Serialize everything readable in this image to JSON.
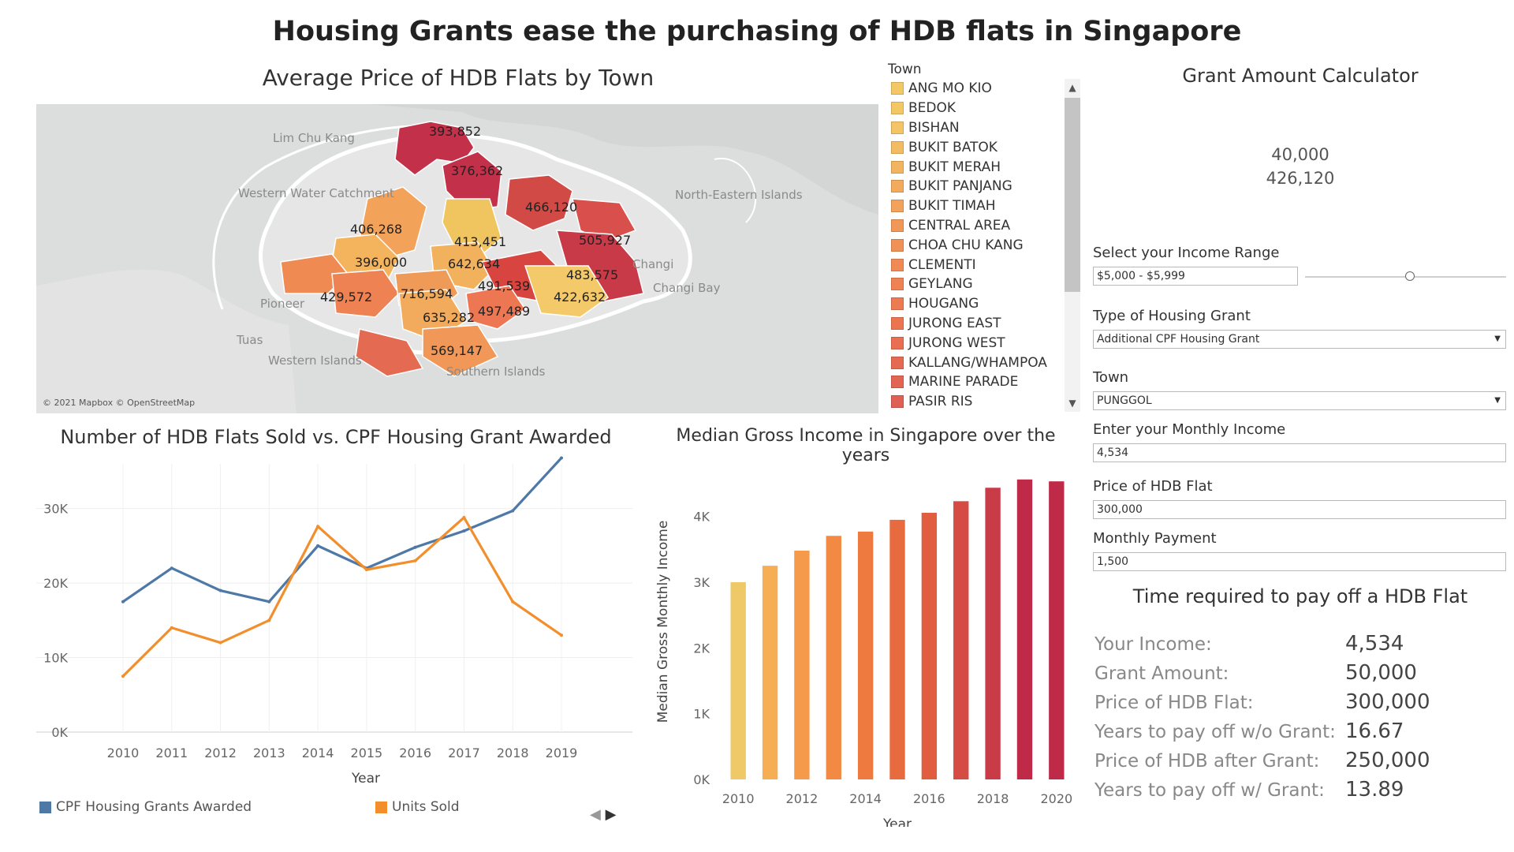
{
  "title": "Housing Grants ease the purchasing of HDB flats in Singapore",
  "map": {
    "title": "Average Price of HDB Flats by Town",
    "credit": "© 2021 Mapbox © OpenStreetMap",
    "price_labels": [
      "393,852",
      "376,362",
      "466,120",
      "406,268",
      "413,451",
      "505,927",
      "396,000",
      "642,634",
      "483,575",
      "491,539",
      "422,632",
      "429,572",
      "716,594",
      "635,282",
      "497,489",
      "569,147"
    ],
    "place_labels": [
      "Lim Chu Kang",
      "Western Water Catchment",
      "Pioneer",
      "Tuas",
      "Western Islands",
      "North-Eastern Islands",
      "Changi",
      "Changi Bay",
      "Southern Islands"
    ]
  },
  "legend": {
    "title": "Town",
    "items": [
      {
        "label": "ANG MO KIO",
        "color": "#f4c765"
      },
      {
        "label": "BEDOK",
        "color": "#f4c765"
      },
      {
        "label": "BISHAN",
        "color": "#f4c467"
      },
      {
        "label": "BUKIT BATOK",
        "color": "#f3bc62"
      },
      {
        "label": "BUKIT MERAH",
        "color": "#f3b45f"
      },
      {
        "label": "BUKIT PANJANG",
        "color": "#f2aa5c"
      },
      {
        "label": "BUKIT TIMAH",
        "color": "#f2a25a"
      },
      {
        "label": "CENTRAL AREA",
        "color": "#f19858"
      },
      {
        "label": "CHOA CHU KANG",
        "color": "#f09256"
      },
      {
        "label": "CLEMENTI",
        "color": "#ef8a55"
      },
      {
        "label": "GEYLANG",
        "color": "#ee8253"
      },
      {
        "label": "HOUGANG",
        "color": "#ec7a52"
      },
      {
        "label": "JURONG EAST",
        "color": "#eb7551"
      },
      {
        "label": "JURONG WEST",
        "color": "#e86f51"
      },
      {
        "label": "KALLANG/WHAMPOA",
        "color": "#e56a52"
      },
      {
        "label": "MARINE PARADE",
        "color": "#e26553"
      },
      {
        "label": "PASIR RIS",
        "color": "#df6054"
      }
    ]
  },
  "calculator": {
    "title": "Grant Amount Calculator",
    "value1": "40,000",
    "value2": "426,120",
    "income_range_label": "Select your Income Range",
    "income_range_value": "$5,000 - $5,999",
    "slider_fraction": 0.52,
    "grant_type_label": "Type of Housing Grant",
    "grant_type_value": "Additional CPF Housing Grant",
    "town_label": "Town",
    "town_value": "PUNGGOL",
    "income_label": "Enter your Monthly Income",
    "income_value": "4,534",
    "price_label": "Price of HDB Flat",
    "price_value": "300,000",
    "payment_label": "Monthly Payment",
    "payment_value": "1,500"
  },
  "results": {
    "title": "Time required to pay off a HDB Flat",
    "rows": [
      {
        "label": "Your Income:",
        "value": "4,534"
      },
      {
        "label": "Grant Amount:",
        "value": "50,000"
      },
      {
        "label": "Price of HDB Flat:",
        "value": "300,000"
      },
      {
        "label": "Years to pay off w/o Grant:",
        "value": "16.67"
      },
      {
        "label": "Price of HDB after Grant:",
        "value": "250,000"
      },
      {
        "label": "Years to pay off w/ Grant:",
        "value": "13.89"
      }
    ]
  },
  "chart_data": [
    {
      "type": "line",
      "title": "Number of HDB Flats Sold vs. CPF Housing Grant Awarded",
      "xlabel": "Year",
      "ylabel": "",
      "x": [
        2010,
        2011,
        2012,
        2013,
        2014,
        2015,
        2016,
        2017,
        2018,
        2019
      ],
      "ylim": [
        0,
        36000
      ],
      "yticks": [
        0,
        10000,
        20000,
        30000
      ],
      "ytick_labels": [
        "0K",
        "10K",
        "20K",
        "30K"
      ],
      "grid": true,
      "legend_position": "bottom",
      "series": [
        {
          "name": "CPF Housing Grants Awarded",
          "color": "#4e79a7",
          "values": [
            17500,
            22000,
            19000,
            17500,
            25000,
            22000,
            24800,
            27000,
            29700,
            36800
          ]
        },
        {
          "name": "Units Sold",
          "color": "#f28e2b",
          "values": [
            7500,
            14000,
            12000,
            15000,
            27600,
            21800,
            23000,
            28800,
            17500,
            13000
          ]
        }
      ]
    },
    {
      "type": "bar",
      "title": "Median Gross Income in Singapore over the years",
      "xlabel": "Year",
      "ylabel": "Median Gross Monthly Income",
      "categories": [
        "2010",
        "2011",
        "2012",
        "2013",
        "2014",
        "2015",
        "2016",
        "2017",
        "2018",
        "2019",
        "2020"
      ],
      "x_tick_labels": [
        "2010",
        "2012",
        "2014",
        "2016",
        "2018",
        "2020"
      ],
      "values": [
        3000,
        3250,
        3480,
        3705,
        3770,
        3949,
        4056,
        4232,
        4437,
        4563,
        4534
      ],
      "colors": [
        "#efc867",
        "#f5ae54",
        "#f59a4a",
        "#f28a44",
        "#ee7a40",
        "#e86a3f",
        "#e05d40",
        "#d44c43",
        "#c93b46",
        "#be2a48",
        "#be2a48"
      ],
      "ylim": [
        0,
        4800
      ],
      "yticks": [
        0,
        1000,
        2000,
        3000,
        4000
      ],
      "ytick_labels": [
        "0K",
        "1K",
        "2K",
        "3K",
        "4K"
      ],
      "grid": false
    }
  ]
}
